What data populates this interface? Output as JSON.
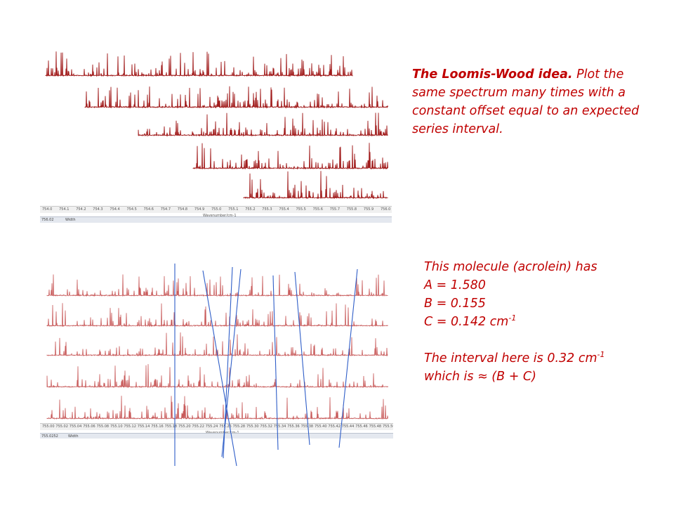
{
  "colors": {
    "spectrum_dark": "#a11c1c",
    "spectrum_light": "#c85a5a",
    "overlay_line": "#2f5ec8",
    "caption_text": "#c00000"
  },
  "top_figure": {
    "axis_ticks": [
      "754.0",
      "754.1",
      "754.2",
      "754.3",
      "754.4",
      "754.5",
      "754.6",
      "754.7",
      "754.8",
      "754.9",
      "755.0",
      "755.1",
      "755.2",
      "755.3",
      "755.4",
      "755.5",
      "755.6",
      "755.7",
      "755.8",
      "755.9",
      "756.0"
    ],
    "axis_title": "Wavenumber/cm-1",
    "status_left": "756.02",
    "status_right": "Width"
  },
  "bottom_figure": {
    "axis_ticks": [
      "755.00",
      "755.02",
      "755.04",
      "755.06",
      "755.08",
      "755.10",
      "755.12",
      "755.14",
      "755.16",
      "755.18",
      "755.20",
      "755.22",
      "755.24",
      "755.26",
      "755.28",
      "755.30",
      "755.32",
      "755.34",
      "755.36",
      "755.38",
      "755.40",
      "755.42",
      "755.44",
      "755.46",
      "755.48",
      "755.50"
    ],
    "axis_title": "Wavenumber/cm-1",
    "status_left": "755.0252",
    "status_right": "Width"
  },
  "caption_top": {
    "title": "The Loomis-Wood idea.",
    "body": "Plot the same spectrum many times with a constant offset equal to an expected series interval."
  },
  "caption_bottom": {
    "line1": "This molecule (acrolein) has",
    "line2": "A = 1.580",
    "line3": "B = 0.155",
    "line4_main": "C = 0.142 cm",
    "line4_sup": "-1",
    "line5_main": "The interval here is 0.32 cm",
    "line5_sup": "-1",
    "line6": "which is ≈ (B + C)"
  }
}
